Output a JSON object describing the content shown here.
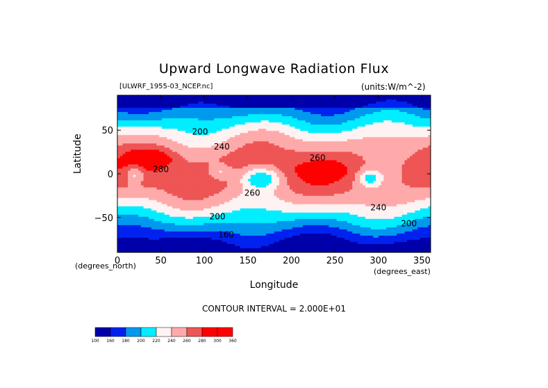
{
  "title": "Upward Longwave Radiation Flux",
  "file_label": "[ULWRF_1955-03_NCEP.nc]",
  "units_label": "(units:W/m^-2)",
  "x_axis_note": "(degrees_north)",
  "y_axis_note": "(degrees_east)",
  "contour_note": "CONTOUR INTERVAL = 2.000E+01",
  "chart_data": {
    "type": "heatmap",
    "title": "Upward Longwave Radiation Flux",
    "xlabel": "Longitude",
    "ylabel": "Latitude",
    "xlim": [
      0,
      360
    ],
    "ylim": [
      -90,
      90
    ],
    "x_ticks": [
      0,
      50,
      100,
      150,
      200,
      250,
      300,
      350
    ],
    "y_ticks": [
      50,
      0,
      -50
    ],
    "x_tick_labels": [
      "0",
      "50",
      "100",
      "150",
      "200",
      "250",
      "300",
      "350"
    ],
    "y_tick_labels": [
      "50",
      "0",
      "−50"
    ],
    "contour_interval": 20,
    "colorbar": {
      "levels": [
        100,
        160,
        180,
        200,
        220,
        240,
        260,
        280,
        300,
        360
      ],
      "labels": [
        "100",
        "160",
        "180",
        "200",
        "220",
        "240",
        "260",
        "280",
        "300",
        "360"
      ],
      "colors": [
        "#0000aa",
        "#0022ee",
        "#0099ee",
        "#00eeff",
        "#fff2f2",
        "#ffaaaa",
        "#ee5555",
        "#ff0000",
        "#ff0000"
      ]
    },
    "contour_labels": [
      {
        "text": "200",
        "lon": 95,
        "lat": 45
      },
      {
        "text": "240",
        "lon": 120,
        "lat": 28
      },
      {
        "text": "280",
        "lon": 50,
        "lat": 2
      },
      {
        "text": "260",
        "lon": 230,
        "lat": 15
      },
      {
        "text": "260",
        "lon": 155,
        "lat": -25
      },
      {
        "text": "200",
        "lon": 115,
        "lat": -52
      },
      {
        "text": "240",
        "lon": 300,
        "lat": -42
      },
      {
        "text": "200",
        "lon": 335,
        "lat": -60
      },
      {
        "text": "160",
        "lon": 125,
        "lat": -73
      }
    ]
  }
}
